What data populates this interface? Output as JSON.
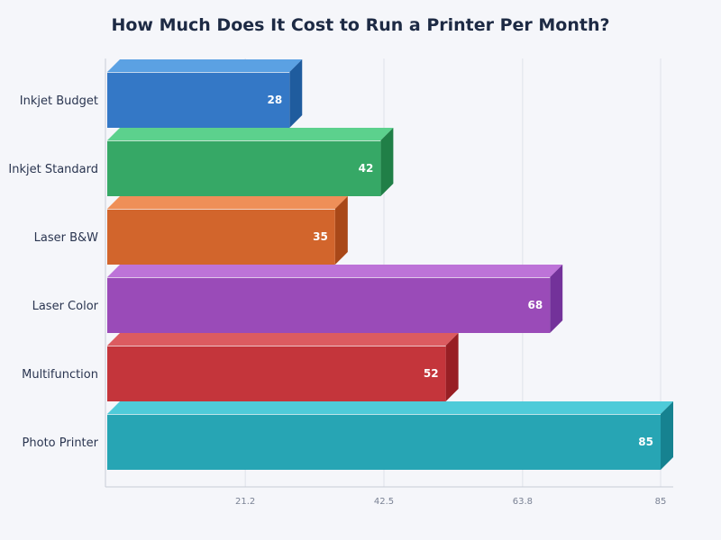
{
  "chart_data": {
    "type": "bar",
    "orientation": "horizontal",
    "title": "How Much Does It Cost to Run a Printer Per Month?",
    "xlabel": "",
    "ylabel": "",
    "categories": [
      "Inkjet Budget",
      "Inkjet Standard",
      "Laser B&W",
      "Laser Color",
      "Multifunction",
      "Photo Printer"
    ],
    "values": [
      28,
      42,
      35,
      68,
      52,
      85
    ],
    "xlim": [
      0,
      85
    ],
    "ticks": [
      "21.2",
      "42.5",
      "63.8",
      "85"
    ],
    "grid": true,
    "colors": {
      "front": [
        "#3478c6",
        "#36a866",
        "#d2652c",
        "#9a4bb8",
        "#c4353b",
        "#27a5b4"
      ],
      "top": [
        "#5ba1e3",
        "#5cd18d",
        "#ef8f58",
        "#bd73d8",
        "#dc5b60",
        "#4ecbd9"
      ],
      "side": [
        "#1f5c9e",
        "#207f47",
        "#a94818",
        "#73329a",
        "#981f24",
        "#168290"
      ]
    }
  }
}
